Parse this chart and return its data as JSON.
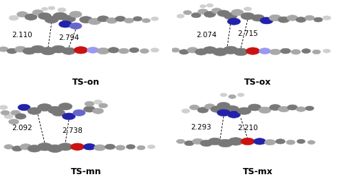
{
  "panels": [
    {
      "label": "TS-on",
      "dist1": "2.110",
      "dist2": "2.794",
      "row": 0,
      "col": 0,
      "crop": [
        0,
        0,
        250,
        130
      ]
    },
    {
      "label": "TS-ox",
      "dist1": "2.074",
      "dist2": "2.715",
      "row": 0,
      "col": 1,
      "crop": [
        250,
        0,
        500,
        130
      ]
    },
    {
      "label": "TS-mn",
      "dist1": "2.092",
      "dist2": "2.738",
      "row": 1,
      "col": 0,
      "crop": [
        0,
        130,
        250,
        260
      ]
    },
    {
      "label": "TS-mx",
      "dist1": "2.293",
      "dist2": "2.210",
      "row": 1,
      "col": 1,
      "crop": [
        250,
        130,
        500,
        260
      ]
    }
  ],
  "bg_color": "#ffffff",
  "label_fontsize": 9,
  "dist_fontsize": 7.5,
  "label_fontweight": "bold",
  "figsize": [
    5.0,
    2.6
  ],
  "dpi": 100
}
